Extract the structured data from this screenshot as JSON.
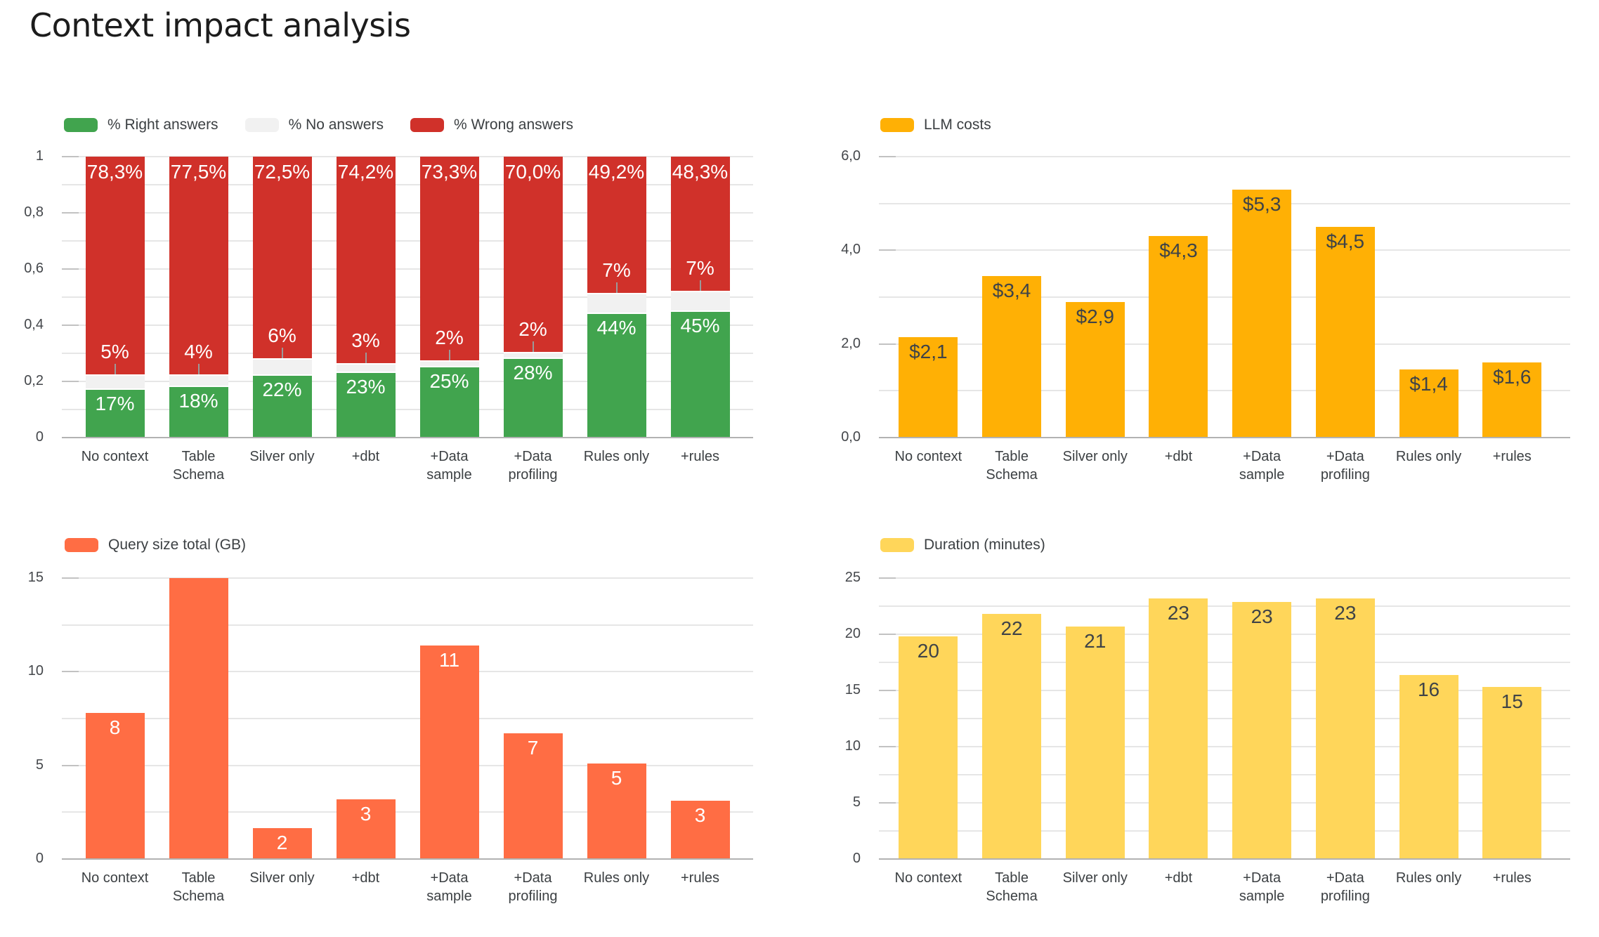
{
  "page": {
    "title": "Context impact analysis"
  },
  "chart_data": [
    {
      "type": "stacked-bar",
      "name": "answers-breakdown",
      "legend_position": "top-left",
      "grid": true,
      "categories": [
        "No context",
        "Table Schema",
        "Silver only",
        "+dbt",
        "+Data sample",
        "+Data profiling",
        "Rules only",
        "+rules"
      ],
      "series": [
        {
          "name": "% Right answers",
          "color": "#41A44E",
          "label_color": "#ffffff",
          "values": [
            17,
            18,
            22,
            23,
            25,
            28,
            44,
            45
          ],
          "labels": [
            "17%",
            "18%",
            "22%",
            "23%",
            "25%",
            "28%",
            "44%",
            "45%"
          ]
        },
        {
          "name": "% No answers",
          "color": "#F1F1F1",
          "label_color": "#ffffff",
          "values": [
            5,
            4,
            6,
            3,
            2,
            2,
            7,
            7
          ],
          "labels": [
            "5%",
            "4%",
            "6%",
            "3%",
            "2%",
            "2%",
            "7%",
            "7%"
          ]
        },
        {
          "name": "% Wrong answers",
          "color": "#D0312A",
          "label_color": "#ffffff",
          "values": [
            78.3,
            77.5,
            72.5,
            74.2,
            73.3,
            70.0,
            49.2,
            48.3
          ],
          "labels": [
            "78,3%",
            "77,5%",
            "72,5%",
            "74,2%",
            "73,3%",
            "70,0%",
            "49,2%",
            "48,3%"
          ]
        }
      ],
      "ylim": [
        0,
        1
      ],
      "y_minor_step": 0.1,
      "yticks": [
        {
          "v": 0,
          "label": "0"
        },
        {
          "v": 0.2,
          "label": "0,2"
        },
        {
          "v": 0.4,
          "label": "0,4"
        },
        {
          "v": 0.6,
          "label": "0,6"
        },
        {
          "v": 0.8,
          "label": "0,8"
        },
        {
          "v": 1,
          "label": "1"
        }
      ]
    },
    {
      "type": "bar",
      "name": "llm-costs",
      "legend_position": "top-left",
      "grid": true,
      "categories": [
        "No context",
        "Table Schema",
        "Silver only",
        "+dbt",
        "+Data sample",
        "+Data profiling",
        "Rules only",
        "+rules"
      ],
      "series": [
        {
          "name": "LLM costs",
          "color": "#FFB005",
          "label_color": "#3f4347",
          "values": [
            2.15,
            3.45,
            2.9,
            4.3,
            5.3,
            4.5,
            1.45,
            1.6
          ],
          "labels": [
            "$2,1",
            "$3,4",
            "$2,9",
            "$4,3",
            "$5,3",
            "$4,5",
            "$1,4",
            "$1,6"
          ]
        }
      ],
      "ylim": [
        0,
        6
      ],
      "y_minor_step": 1,
      "yticks": [
        {
          "v": 0,
          "label": "0,0"
        },
        {
          "v": 2,
          "label": "2,0"
        },
        {
          "v": 4,
          "label": "4,0"
        },
        {
          "v": 6,
          "label": "6,0"
        }
      ]
    },
    {
      "type": "bar",
      "name": "query-size-total",
      "legend_position": "top-left",
      "grid": true,
      "categories": [
        "No context",
        "Table Schema",
        "Silver only",
        "+dbt",
        "+Data sample",
        "+Data profiling",
        "Rules only",
        "+rules"
      ],
      "series": [
        {
          "name": "Query size total (GB)",
          "color": "#FF6D44",
          "label_color": "#ffffff",
          "values": [
            7.8,
            15,
            1.65,
            3.2,
            11.4,
            6.7,
            5.1,
            3.1
          ],
          "labels": [
            "8",
            null,
            "2",
            "3",
            "11",
            "7",
            "5",
            "3"
          ]
        }
      ],
      "ylim": [
        0,
        15
      ],
      "y_minor_step": 2.5,
      "yticks": [
        {
          "v": 0,
          "label": "0"
        },
        {
          "v": 5,
          "label": "5"
        },
        {
          "v": 10,
          "label": "10"
        },
        {
          "v": 15,
          "label": "15"
        }
      ]
    },
    {
      "type": "bar",
      "name": "duration-minutes",
      "legend_position": "top-left",
      "grid": true,
      "categories": [
        "No context",
        "Table Schema",
        "Silver only",
        "+dbt",
        "+Data sample",
        "+Data profiling",
        "Rules only",
        "+rules"
      ],
      "series": [
        {
          "name": "Duration (minutes)",
          "color": "#FFD65A",
          "label_color": "#3f4347",
          "values": [
            19.8,
            21.8,
            20.7,
            23.2,
            22.9,
            23.2,
            16.4,
            15.3
          ],
          "labels": [
            "20",
            "22",
            "21",
            "23",
            "23",
            "23",
            "16",
            "15"
          ]
        }
      ],
      "ylim": [
        0,
        25
      ],
      "y_minor_step": 2.5,
      "yticks": [
        {
          "v": 0,
          "label": "0"
        },
        {
          "v": 5,
          "label": "5"
        },
        {
          "v": 10,
          "label": "10"
        },
        {
          "v": 15,
          "label": "15"
        },
        {
          "v": 20,
          "label": "20"
        },
        {
          "v": 25,
          "label": "25"
        }
      ]
    }
  ]
}
